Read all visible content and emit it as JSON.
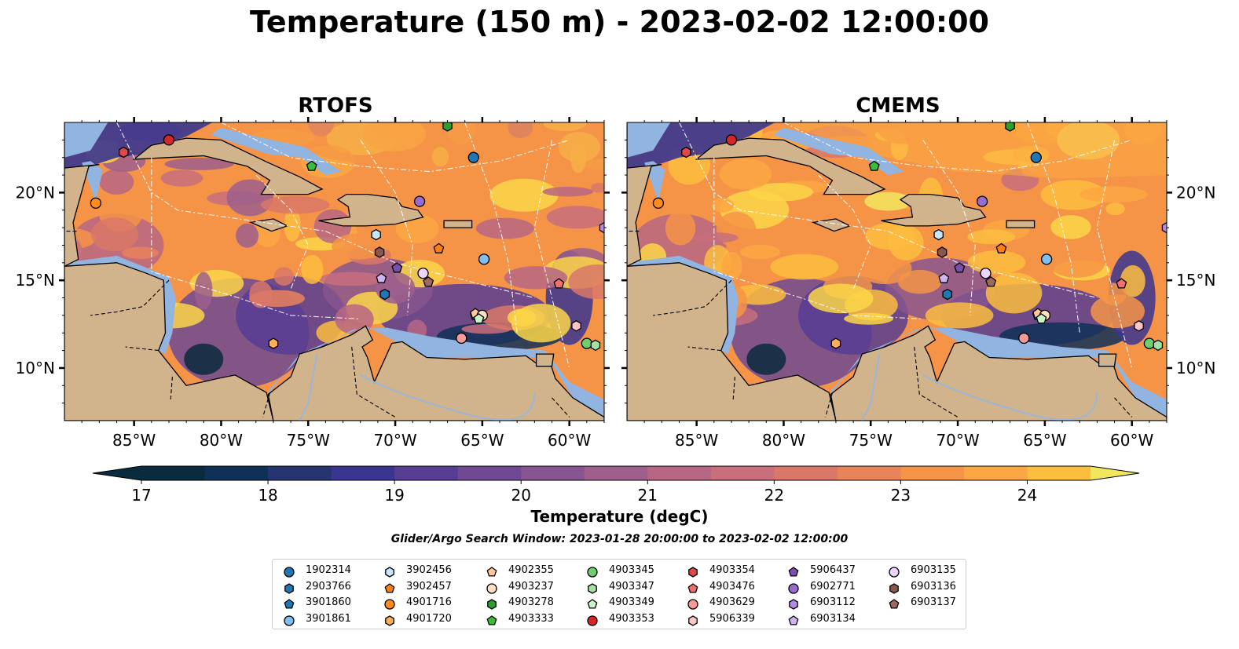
{
  "figure": {
    "title": "Temperature (150 m) - 2023-02-02 12:00:00",
    "panels": [
      {
        "key": "rtofs",
        "title": "RTOFS"
      },
      {
        "key": "cmems",
        "title": "CMEMS"
      }
    ],
    "lon_ticks": [
      "85°W",
      "80°W",
      "75°W",
      "70°W",
      "65°W",
      "60°W"
    ],
    "lat_ticks": [
      "20°N",
      "15°N",
      "10°N"
    ],
    "colorbar": {
      "label": "Temperature (degC)",
      "ticks": [
        "17",
        "18",
        "19",
        "20",
        "21",
        "22",
        "23",
        "24"
      ],
      "colors": [
        "#0a2a3d",
        "#0f3057",
        "#26346f",
        "#3a3590",
        "#573d93",
        "#6f4992",
        "#87558f",
        "#9e5f8c",
        "#b76684",
        "#c86e7c",
        "#d97869",
        "#e9835a",
        "#f59447",
        "#fba743",
        "#fdbd3f",
        "#fbd648"
      ],
      "under_color": "#0a2a3d",
      "over_color": "#f2e65e"
    },
    "search_window": "Glider/Argo Search Window: 2023-01-28 20:00:00 to 2023-02-02 12:00:00"
  },
  "chart_data": {
    "type": "heatmap",
    "variable": "Temperature (150 m)",
    "units": "degC",
    "color_range": [
      17,
      24.5
    ],
    "lon_range": [
      -89,
      -58
    ],
    "lat_range": [
      7,
      24
    ],
    "panels": [
      "RTOFS",
      "CMEMS"
    ],
    "floats": [
      {
        "id": "1902314",
        "color": "#1f77b4",
        "marker": "circle",
        "lon": -65.5,
        "lat": 22.0
      },
      {
        "id": "2903766",
        "color": "#1f77b4",
        "marker": "hexagon",
        "lon": -70.6,
        "lat": 14.2
      },
      {
        "id": "3901860",
        "color": "#1f77b4",
        "marker": "pentagon",
        "lon": -65.4,
        "lat": 13.0
      },
      {
        "id": "3901861",
        "color": "#7fbfef",
        "marker": "circle",
        "lon": -64.9,
        "lat": 16.2
      },
      {
        "id": "3902456",
        "color": "#c6e7ff",
        "marker": "hexagon",
        "lon": -71.1,
        "lat": 17.6
      },
      {
        "id": "3902457",
        "color": "#ff7f0e",
        "marker": "pentagon",
        "lon": -67.5,
        "lat": 16.8
      },
      {
        "id": "4901716",
        "color": "#ff8c1a",
        "marker": "circle",
        "lon": -87.2,
        "lat": 19.4
      },
      {
        "id": "4901720",
        "color": "#ffad5a",
        "marker": "hexagon",
        "lon": -77.0,
        "lat": 11.4
      },
      {
        "id": "4902355",
        "color": "#ffc89a",
        "marker": "pentagon",
        "lon": -65.4,
        "lat": 13.1
      },
      {
        "id": "4903237",
        "color": "#ffe0c0",
        "marker": "circle",
        "lon": -65.0,
        "lat": 13.0
      },
      {
        "id": "4903278",
        "color": "#2ca02c",
        "marker": "hexagon",
        "lon": -67.0,
        "lat": 23.8
      },
      {
        "id": "4903333",
        "color": "#3bbf3b",
        "marker": "pentagon",
        "lon": -74.8,
        "lat": 21.5
      },
      {
        "id": "4903345",
        "color": "#6fcf6f",
        "marker": "circle",
        "lon": -59.0,
        "lat": 11.4
      },
      {
        "id": "4903347",
        "color": "#9fe39f",
        "marker": "hexagon",
        "lon": -58.5,
        "lat": 11.3
      },
      {
        "id": "4903349",
        "color": "#c9f5c9",
        "marker": "pentagon",
        "lon": -65.2,
        "lat": 12.8
      },
      {
        "id": "4903353",
        "color": "#d62728",
        "marker": "circle",
        "lon": -83.0,
        "lat": 23.0
      },
      {
        "id": "4903354",
        "color": "#e04848",
        "marker": "hexagon",
        "lon": -85.6,
        "lat": 22.3
      },
      {
        "id": "4903476",
        "color": "#f07070",
        "marker": "pentagon",
        "lon": -60.6,
        "lat": 14.8
      },
      {
        "id": "4903629",
        "color": "#f49a9a",
        "marker": "circle",
        "lon": -66.2,
        "lat": 11.7
      },
      {
        "id": "5906339",
        "color": "#ffc4c4",
        "marker": "hexagon",
        "lon": -59.6,
        "lat": 12.4
      },
      {
        "id": "5906437",
        "color": "#7b4fb0",
        "marker": "pentagon",
        "lon": -69.9,
        "lat": 15.7
      },
      {
        "id": "6902771",
        "color": "#9a6ad0",
        "marker": "circle",
        "lon": -68.6,
        "lat": 19.5
      },
      {
        "id": "6903112",
        "color": "#b38ae6",
        "marker": "hexagon",
        "lon": -58.0,
        "lat": 18.0
      },
      {
        "id": "6903134",
        "color": "#d1b3f5",
        "marker": "pentagon",
        "lon": -70.8,
        "lat": 15.1
      },
      {
        "id": "6903135",
        "color": "#ecd6ff",
        "marker": "circle",
        "lon": -68.4,
        "lat": 15.4
      },
      {
        "id": "6903136",
        "color": "#8c564b",
        "marker": "hexagon",
        "lon": -70.9,
        "lat": 16.6
      },
      {
        "id": "6903137",
        "color": "#a0685c",
        "marker": "pentagon",
        "lon": -68.1,
        "lat": 14.9
      }
    ]
  }
}
